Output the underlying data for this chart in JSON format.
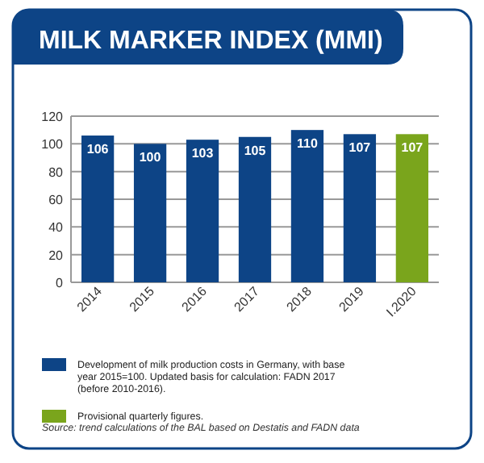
{
  "chart_data": {
    "type": "bar",
    "title": "MILK MARKER INDEX (MMI)",
    "categories": [
      "2014",
      "2015",
      "2016",
      "2017",
      "2018",
      "2019",
      "I.2020"
    ],
    "series": [
      {
        "name": "Development of milk production costs in Germany, with base year 2015=100. Updated basis for calculation: FADN 2017 (before 2010-2016).",
        "color": "#0d4486",
        "values": [
          106,
          100,
          103,
          105,
          110,
          107,
          null
        ]
      },
      {
        "name": "Provisional quarterly figures.",
        "color": "#7aa51c",
        "values": [
          null,
          null,
          null,
          null,
          null,
          null,
          107
        ]
      }
    ],
    "ylim": [
      0,
      120
    ],
    "yticks": [
      0,
      20,
      40,
      60,
      80,
      100,
      120
    ],
    "grid": "y",
    "data_labels": true,
    "legend": "bottom",
    "annotations": [
      "Source: trend calculations of the BAL based on Destatis and FADN data"
    ]
  }
}
